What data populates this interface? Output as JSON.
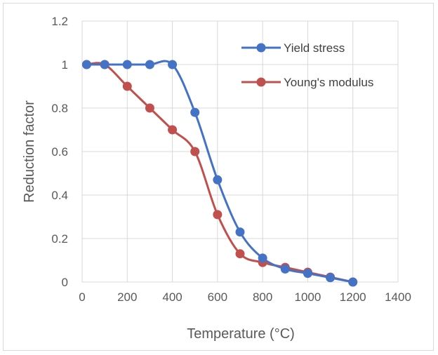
{
  "chart_data": {
    "type": "line",
    "title": "",
    "xlabel": "Temperature (°C)",
    "ylabel": "Reduction factor",
    "xlim": [
      0,
      1400
    ],
    "ylim": [
      0,
      1.2
    ],
    "xticks": [
      0,
      200,
      400,
      600,
      800,
      1000,
      1200,
      1400
    ],
    "xtick_labels": [
      "0",
      "200",
      "400",
      "600",
      "800",
      "1000",
      "1200",
      "1400"
    ],
    "yticks": [
      0,
      0.2,
      0.4,
      0.6,
      0.8,
      1,
      1.2
    ],
    "ytick_labels": [
      "0",
      "0.2",
      "0.4",
      "0.6",
      "0.8",
      "1",
      "1.2"
    ],
    "grid": "vertical and horizontal major gridlines",
    "legend": "top-right",
    "smooth": true,
    "series": [
      {
        "name": "Yield stress",
        "color": "#4472c4",
        "x": [
          20,
          100,
          200,
          300,
          400,
          500,
          600,
          700,
          800,
          900,
          1000,
          1100,
          1200
        ],
        "y": [
          1,
          1,
          1,
          1,
          1,
          0.78,
          0.47,
          0.23,
          0.11,
          0.06,
          0.04,
          0.02,
          0
        ]
      },
      {
        "name": "Young's modulus",
        "color": "#c0504d",
        "x": [
          20,
          100,
          200,
          300,
          400,
          500,
          600,
          700,
          800,
          900,
          1000,
          1100,
          1200
        ],
        "y": [
          1,
          1,
          0.9,
          0.8,
          0.7,
          0.6,
          0.31,
          0.13,
          0.09,
          0.0675,
          0.045,
          0.0225,
          0
        ]
      }
    ]
  }
}
